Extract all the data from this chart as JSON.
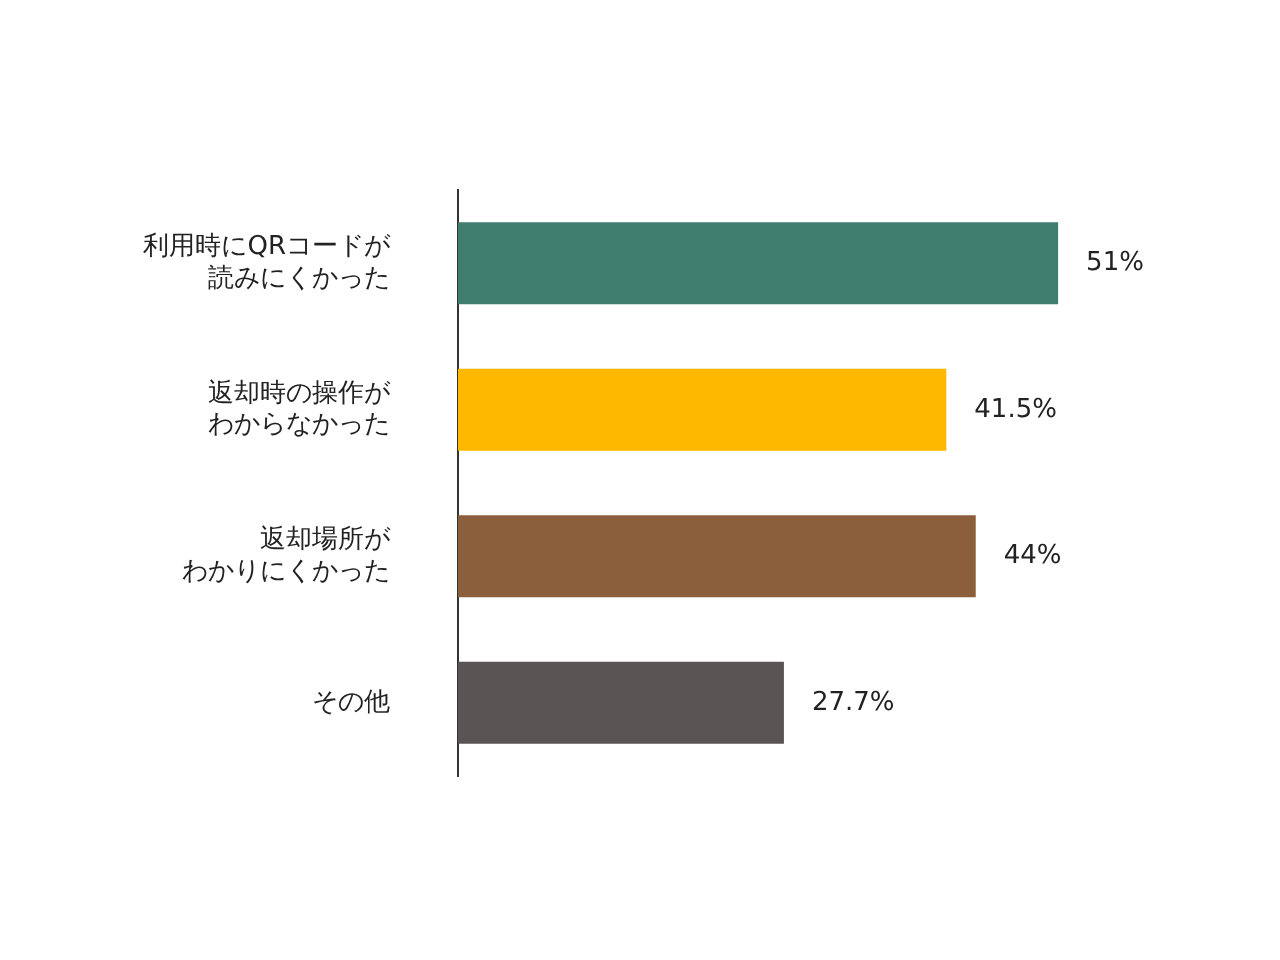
{
  "chart_data": {
    "type": "bar",
    "orientation": "horizontal",
    "categories": [
      "利用時にQRコードが読みにくかった",
      "返却時の操作がわからなかった",
      "返却場所がわかりにくかった",
      "その他"
    ],
    "values": [
      51,
      41.5,
      44,
      27.7
    ],
    "colors": [
      "#3f7d6e",
      "#ffb800",
      "#8b5e3c",
      "#595555"
    ],
    "value_labels": [
      "51%",
      "41.5%",
      "44%",
      "27.7%"
    ],
    "legend": false
  }
}
